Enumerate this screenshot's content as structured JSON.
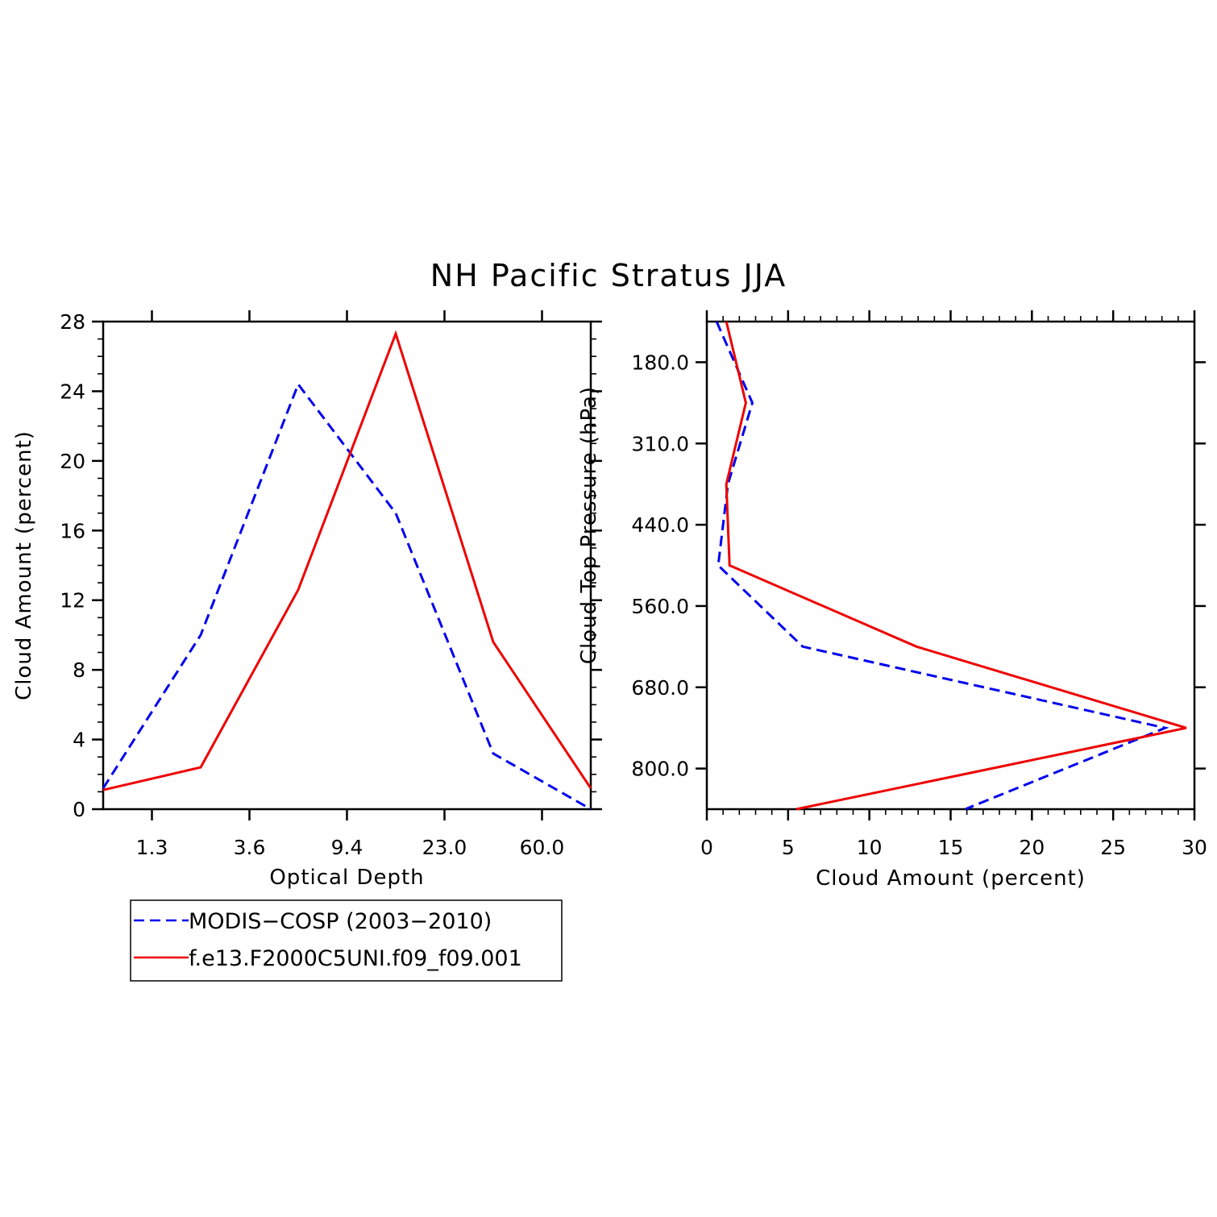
{
  "title": "NH Pacific Stratus JJA",
  "colors": {
    "blue": "#0000ee",
    "red": "#ee0000"
  },
  "chart_data": [
    {
      "type": "line",
      "xlabel": "Optical Depth",
      "ylabel": "Cloud Amount (percent)",
      "x_tick_labels": [
        "1.3",
        "3.6",
        "9.4",
        "23.0",
        "60.0"
      ],
      "y_ticks": [
        0,
        4,
        8,
        12,
        16,
        20,
        24,
        28
      ],
      "ylim": [
        0,
        28
      ],
      "x_bin_index": [
        0,
        1,
        2,
        3,
        4,
        5
      ],
      "series": [
        {
          "name": "MODIS−COSP (2003−2010)",
          "color": "#0000ee",
          "dash": true,
          "values": [
            1.2,
            10.0,
            24.4,
            17.0,
            3.2,
            0.0
          ]
        },
        {
          "name": "f.e13.F2000C5UNI.f09_f09.001",
          "color": "#ee0000",
          "dash": false,
          "values": [
            1.1,
            2.4,
            12.6,
            27.3,
            9.6,
            1.2
          ]
        }
      ],
      "legend_position": "below"
    },
    {
      "type": "line",
      "xlabel": "Cloud Amount (percent)",
      "ylabel": "Cloud Top Pressure (hPa)",
      "x_ticks": [
        0,
        5,
        10,
        15,
        20,
        25,
        30
      ],
      "xlim": [
        0,
        30
      ],
      "y_tick_labels": [
        "180.0",
        "310.0",
        "440.0",
        "560.0",
        "680.0",
        "800.0"
      ],
      "y_bin_index": [
        0,
        1,
        2,
        3,
        4,
        5,
        6
      ],
      "series": [
        {
          "name": "MODIS−COSP (2003−2010)",
          "color": "#0000ee",
          "dash": true,
          "values": [
            0.6,
            2.8,
            1.3,
            0.7,
            5.9,
            28.2,
            15.9
          ]
        },
        {
          "name": "f.e13.F2000C5UNI.f09_f09.001",
          "color": "#ee0000",
          "dash": false,
          "values": [
            1.2,
            2.4,
            1.2,
            1.4,
            12.9,
            29.5,
            5.5
          ]
        }
      ]
    }
  ]
}
